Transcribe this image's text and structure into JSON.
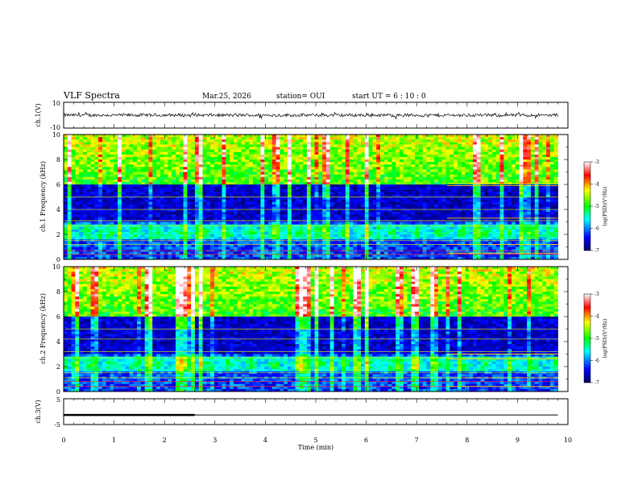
{
  "header": {
    "title": "VLF Spectra",
    "date": "Mar.25, 2026",
    "station": "station= OUI",
    "start_ut": "start  UT  =   6  : 10 : 0"
  },
  "chart_data": {
    "type": "heatmap",
    "xlabel": "Time  (min)",
    "xlim": [
      0,
      10
    ],
    "x_ticks": [
      "0",
      "1",
      "2",
      "3",
      "4",
      "5",
      "6",
      "7",
      "8",
      "9",
      "10"
    ],
    "data_end_min": 9.8,
    "panels": [
      {
        "ylabel": "ch.1(V)",
        "type": "line",
        "ylim": [
          -10,
          10
        ],
        "y_ticks": [
          "10",
          "-10"
        ],
        "series": [
          {
            "mean": 0,
            "amplitude_approx": 1.5,
            "color": "#000000"
          }
        ]
      },
      {
        "ylabel": "ch.1 Frequency (kHz)",
        "type": "spectrogram",
        "ylim": [
          0,
          10
        ],
        "y_ticks": [
          "0",
          "2",
          "4",
          "6",
          "8",
          "10"
        ],
        "features": {
          "background_log_psd": -6.3,
          "high_band_khz": [
            6,
            10
          ],
          "quiet_band_khz": [
            3,
            6
          ],
          "emission_band_khz": [
            1.6,
            2.8
          ],
          "emission_center_khz": 2.2,
          "tone_lines_khz": [
            0.4,
            0.7,
            1.2,
            1.5,
            2.7,
            3.1,
            4.0,
            5.0
          ],
          "late_lines_start_min": 7.6,
          "late_lines_khz": [
            5.9,
            6.1,
            3.3,
            1.2,
            0.5
          ]
        },
        "colorbar": {
          "label": "log(PSD)(V²/Hz)",
          "min": -7,
          "max": -3,
          "ticks": [
            "-3",
            "-4",
            "-5",
            "-6",
            "-7"
          ]
        }
      },
      {
        "ylabel": "ch.2 Frequency (kHz)",
        "type": "spectrogram",
        "ylim": [
          0,
          10
        ],
        "y_ticks": [
          "0",
          "2",
          "4",
          "6",
          "8",
          "10"
        ],
        "features": {
          "background_log_psd": -6.3,
          "high_band_khz": [
            6,
            10
          ],
          "quiet_band_khz": [
            3,
            6
          ],
          "emission_band_khz": [
            1.6,
            2.8
          ],
          "emission_center_khz": 2.2,
          "tone_lines_khz": [
            0.4,
            0.8,
            1.1,
            1.5,
            2.7,
            3.2,
            4.2,
            5.0
          ],
          "late_lines_start_min": 7.6,
          "late_lines_khz": [
            3.0,
            2.6,
            1.1,
            0.4
          ]
        },
        "colorbar": {
          "label": "log(PSD)(V²/Hz)",
          "min": -7,
          "max": -3,
          "ticks": [
            "-3",
            "-4",
            "-5",
            "-6",
            "-7"
          ]
        }
      },
      {
        "ylabel": "ch.3(V)",
        "type": "line",
        "ylim": [
          -5,
          5
        ],
        "y_ticks": [
          "5",
          "-5"
        ],
        "series": [
          {
            "segments": [
              {
                "x": [
                  0,
                  2.6
                ],
                "y": -1.3,
                "weight": "thick"
              },
              {
                "x": [
                  2.6,
                  9.8
                ],
                "y": -1.3,
                "weight": "thin"
              }
            ],
            "color": "#000000"
          }
        ]
      }
    ]
  }
}
